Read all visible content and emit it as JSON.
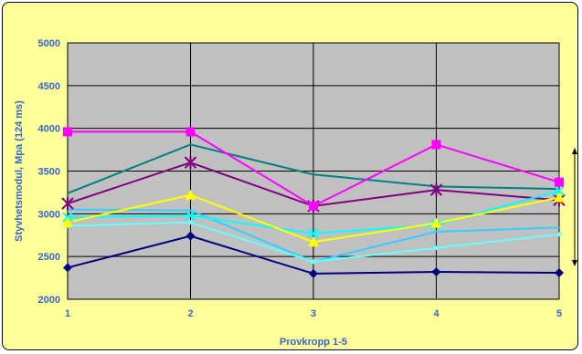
{
  "chart_data": {
    "type": "line",
    "title": "",
    "xlabel": "Provkropp 1-5",
    "ylabel": "Styvhetsmodul, Mpa (124 ms)",
    "x": [
      1,
      2,
      3,
      4,
      5
    ],
    "x_tick_labels": [
      "1",
      "2",
      "3",
      "4",
      "5"
    ],
    "ylim": [
      2000,
      5000
    ],
    "y_ticks": [
      2000,
      2500,
      3000,
      3500,
      4000,
      4500,
      5000
    ],
    "y_tick_labels": [
      "2000",
      "2500",
      "3000",
      "3500",
      "4000",
      "4500",
      "5000"
    ],
    "grid": true,
    "plot_background": "#c0c0c0",
    "chart_background": "#ffff99",
    "series": [
      {
        "color": "#000080",
        "marker": "diamond",
        "values": [
          2370,
          2740,
          2300,
          2320,
          2310
        ]
      },
      {
        "color": "#ff00ff",
        "marker": "square",
        "values": [
          3960,
          3960,
          3090,
          3810,
          3370
        ]
      },
      {
        "color": "#ffff00",
        "marker": "triangle",
        "values": [
          2900,
          3220,
          2670,
          2890,
          3190
        ]
      },
      {
        "color": "#00ffff",
        "marker": "x",
        "values": [
          2960,
          2980,
          2770,
          2870,
          3270
        ]
      },
      {
        "color": "#800080",
        "marker": "star",
        "values": [
          3120,
          3600,
          3090,
          3280,
          3160
        ]
      },
      {
        "color": "#008080",
        "marker": "none",
        "values": [
          3240,
          3810,
          3460,
          3320,
          3290
        ]
      },
      {
        "color": "#33ccff",
        "marker": "none",
        "values": [
          3050,
          3040,
          2440,
          2790,
          2840
        ]
      },
      {
        "color": "#66ffff",
        "marker": "dot",
        "values": [
          2860,
          2900,
          2440,
          2600,
          2760
        ]
      }
    ],
    "annotation": "double-arrow"
  }
}
